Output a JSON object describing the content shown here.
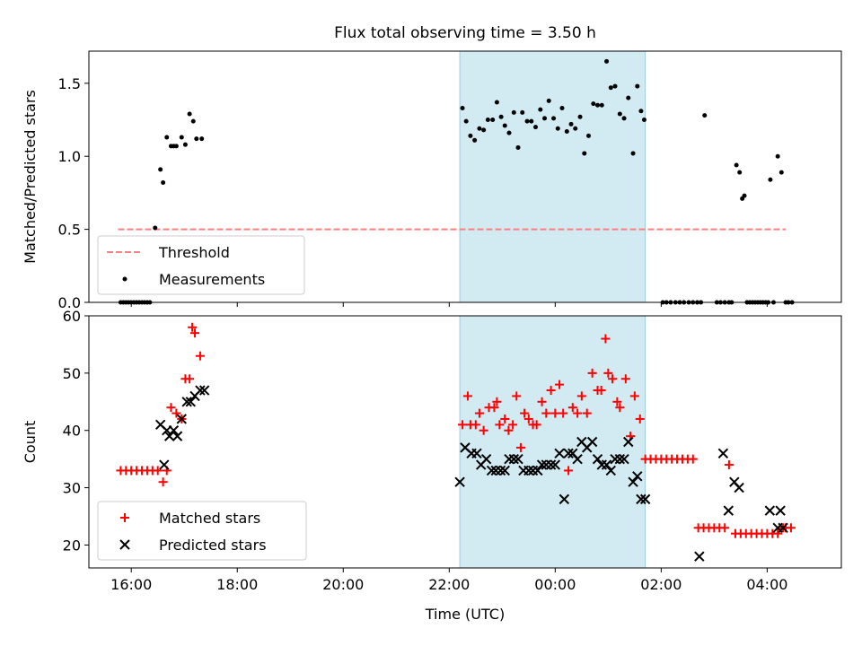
{
  "figure": {
    "title": "Flux total observing time = 3.50 h"
  },
  "colors": {
    "threshold": "#ff7f7f",
    "measurement": "#000000",
    "matched": "#ff0000",
    "predicted": "#000000",
    "highlight": "#add8e6"
  },
  "chart_data": [
    {
      "type": "scatter",
      "panel": "top",
      "xlabel": "",
      "ylabel": "Matched/Predicted stars",
      "xlim": [
        -0.8,
        13.4
      ],
      "ylim": [
        0.0,
        1.72
      ],
      "yticks": [
        0.0,
        0.5,
        1.0,
        1.5
      ],
      "ytick_labels": [
        "0.0",
        "0.5",
        "1.0",
        "1.5"
      ],
      "xticks": [
        0,
        2,
        4,
        6,
        8,
        10,
        12
      ],
      "highlight_span": [
        6.2,
        9.7
      ],
      "legend": {
        "position": "lower-left",
        "entries": [
          {
            "label": "Threshold",
            "marker": "dashed-line"
          },
          {
            "label": "Measurements",
            "marker": "dot"
          }
        ]
      },
      "series": [
        {
          "name": "Threshold",
          "kind": "line",
          "x": [
            -0.25,
            12.35
          ],
          "y": [
            0.5,
            0.5
          ]
        },
        {
          "name": "Measurements",
          "kind": "points",
          "x": [
            -0.2,
            -0.15,
            -0.1,
            -0.05,
            0.0,
            0.05,
            0.1,
            0.15,
            0.2,
            0.25,
            0.3,
            0.35,
            0.45,
            0.55,
            0.6,
            0.67,
            0.75,
            0.8,
            0.85,
            0.95,
            1.02,
            1.1,
            1.17,
            1.23,
            1.33,
            6.25,
            6.32,
            6.4,
            6.48,
            6.57,
            6.65,
            6.73,
            6.82,
            6.9,
            6.98,
            7.05,
            7.13,
            7.22,
            7.3,
            7.38,
            7.47,
            7.55,
            7.63,
            7.72,
            7.8,
            7.88,
            7.97,
            8.05,
            8.13,
            8.22,
            8.3,
            8.38,
            8.47,
            8.55,
            8.63,
            8.72,
            8.8,
            8.88,
            8.97,
            9.05,
            9.13,
            9.22,
            9.3,
            9.38,
            9.47,
            9.55,
            9.62,
            9.68,
            10.03,
            10.1,
            10.18,
            10.27,
            10.35,
            10.43,
            10.52,
            10.6,
            10.68,
            10.75,
            10.82,
            11.05,
            11.12,
            11.2,
            11.28,
            11.33,
            11.42,
            11.48,
            11.53,
            11.57,
            11.62,
            11.67,
            11.72,
            11.77,
            11.82,
            11.87,
            11.92,
            11.97,
            12.02,
            12.06,
            12.12,
            12.2,
            12.27,
            12.35,
            12.4,
            12.47
          ],
          "y": [
            0.0,
            0.0,
            0.0,
            0.0,
            0.0,
            0.0,
            0.0,
            0.0,
            0.0,
            0.0,
            0.0,
            0.0,
            0.51,
            0.91,
            0.82,
            1.13,
            1.07,
            1.07,
            1.07,
            1.13,
            1.08,
            1.29,
            1.24,
            1.12,
            1.12,
            1.33,
            1.24,
            1.14,
            1.11,
            1.19,
            1.18,
            1.25,
            1.25,
            1.37,
            1.27,
            1.21,
            1.16,
            1.3,
            1.06,
            1.3,
            1.24,
            1.24,
            1.2,
            1.32,
            1.26,
            1.38,
            1.26,
            1.19,
            1.33,
            1.17,
            1.22,
            1.19,
            1.27,
            1.02,
            1.14,
            1.36,
            1.35,
            1.35,
            1.65,
            1.47,
            1.48,
            1.29,
            1.26,
            1.4,
            1.02,
            1.48,
            1.31,
            1.25,
            0.0,
            0.0,
            0.0,
            0.0,
            0.0,
            0.0,
            0.0,
            0.0,
            0.0,
            0.0,
            1.28,
            0.0,
            0.0,
            0.0,
            0.0,
            0.0,
            0.94,
            0.89,
            0.71,
            0.73,
            0.0,
            0.0,
            0.0,
            0.0,
            0.0,
            0.0,
            0.0,
            0.0,
            0.0,
            0.84,
            0.0,
            1.0,
            0.89,
            0.0,
            0.0,
            0.0
          ]
        }
      ]
    },
    {
      "type": "scatter",
      "panel": "bottom",
      "xlabel": "Time (UTC)",
      "ylabel": "Count",
      "xlim": [
        -0.8,
        13.4
      ],
      "ylim": [
        16,
        60
      ],
      "yticks": [
        20,
        30,
        40,
        50,
        60
      ],
      "ytick_labels": [
        "20",
        "30",
        "40",
        "50",
        "60"
      ],
      "xticks": [
        0,
        2,
        4,
        6,
        8,
        10,
        12
      ],
      "xtick_labels": [
        "16:00",
        "18:00",
        "20:00",
        "22:00",
        "00:00",
        "02:00",
        "04:00"
      ],
      "highlight_span": [
        6.2,
        9.7
      ],
      "legend": {
        "position": "lower-left",
        "entries": [
          {
            "label": "Matched stars",
            "marker": "plus"
          },
          {
            "label": "Predicted stars",
            "marker": "x"
          }
        ]
      },
      "series": [
        {
          "name": "Matched stars",
          "marker": "plus",
          "x": [
            -0.2,
            -0.1,
            0.0,
            0.1,
            0.2,
            0.3,
            0.4,
            0.5,
            0.6,
            0.67,
            0.75,
            0.85,
            0.95,
            1.02,
            1.1,
            1.15,
            1.2,
            1.3,
            6.25,
            6.35,
            6.4,
            6.5,
            6.57,
            6.65,
            6.75,
            6.85,
            6.9,
            6.95,
            7.05,
            7.12,
            7.2,
            7.27,
            7.35,
            7.42,
            7.5,
            7.58,
            7.65,
            7.75,
            7.83,
            7.92,
            8.0,
            8.08,
            8.15,
            8.25,
            8.33,
            8.42,
            8.5,
            8.6,
            8.7,
            8.8,
            8.87,
            8.95,
            9.0,
            9.08,
            9.17,
            9.22,
            9.33,
            9.42,
            9.5,
            9.6,
            9.7,
            9.8,
            9.9,
            10.0,
            10.1,
            10.2,
            10.3,
            10.4,
            10.5,
            10.6,
            10.7,
            10.8,
            10.9,
            11.0,
            11.1,
            11.2,
            11.28,
            11.4,
            11.5,
            11.6,
            11.7,
            11.8,
            11.9,
            12.0,
            12.1,
            12.2,
            12.3,
            12.35,
            12.45
          ],
          "y": [
            33,
            33,
            33,
            33,
            33,
            33,
            33,
            33,
            31,
            33,
            44,
            43,
            42,
            49,
            49,
            58,
            57,
            53,
            41,
            46,
            41,
            41,
            43,
            40,
            44,
            44,
            45,
            41,
            42,
            40,
            41,
            46,
            37,
            43,
            42,
            41,
            41,
            45,
            43,
            47,
            43,
            48,
            43,
            33,
            44,
            43,
            46,
            43,
            50,
            47,
            47,
            56,
            50,
            49,
            45,
            44,
            49,
            39,
            46,
            42,
            35,
            35,
            35,
            35,
            35,
            35,
            35,
            35,
            35,
            35,
            23,
            23,
            23,
            23,
            23,
            23,
            34,
            22,
            22,
            22,
            22,
            22,
            22,
            22,
            22,
            22,
            23,
            23,
            23
          ]
        },
        {
          "name": "Predicted stars",
          "marker": "x",
          "x": [
            0.55,
            0.62,
            0.67,
            0.72,
            0.8,
            0.87,
            0.95,
            1.05,
            1.12,
            1.2,
            1.3,
            1.38,
            6.2,
            6.3,
            6.42,
            6.52,
            6.6,
            6.7,
            6.8,
            6.88,
            6.97,
            7.05,
            7.13,
            7.22,
            7.3,
            7.4,
            7.5,
            7.58,
            7.67,
            7.75,
            7.83,
            7.92,
            8.0,
            8.08,
            8.17,
            8.25,
            8.33,
            8.42,
            8.5,
            8.6,
            8.7,
            8.8,
            8.88,
            8.97,
            9.05,
            9.13,
            9.22,
            9.3,
            9.38,
            9.47,
            9.55,
            9.62,
            9.7,
            10.72,
            11.17,
            11.27,
            11.38,
            11.47,
            12.05,
            12.2,
            12.25,
            12.3
          ],
          "y": [
            41,
            34,
            40,
            39,
            40,
            39,
            42,
            45,
            45,
            46,
            47,
            47,
            31,
            37,
            36,
            36,
            34,
            35,
            33,
            33,
            33,
            33,
            35,
            35,
            35,
            33,
            33,
            33,
            33,
            34,
            34,
            34,
            34,
            36,
            28,
            36,
            36,
            35,
            38,
            37,
            38,
            35,
            34,
            34,
            33,
            35,
            35,
            35,
            38,
            31,
            32,
            28,
            28,
            18,
            36,
            26,
            31,
            30,
            26,
            23,
            26,
            23
          ]
        }
      ]
    }
  ]
}
